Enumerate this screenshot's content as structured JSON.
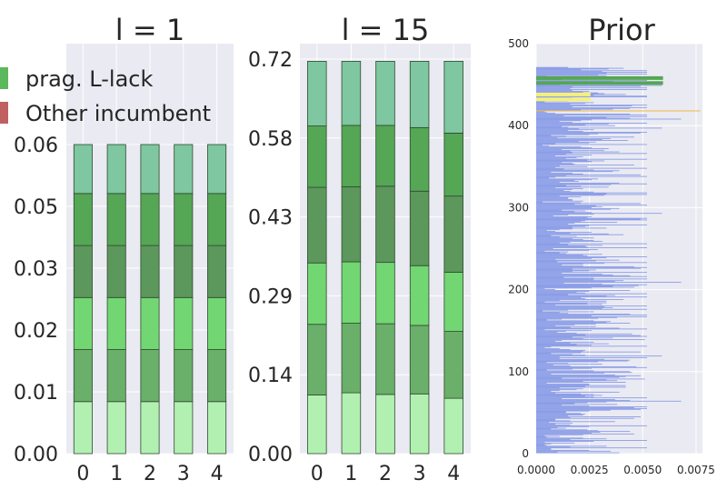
{
  "chart_data": [
    {
      "type": "bar",
      "stacked": true,
      "title": "l = 1",
      "categories": [
        "0",
        "1",
        "2",
        "3",
        "4"
      ],
      "yticks": [
        "0.00",
        "0.01",
        "0.02",
        "0.03",
        "0.05",
        "0.06"
      ],
      "ylim": [
        0,
        0.06
      ],
      "grid": true,
      "series": [
        {
          "color": "#b2f0b2",
          "values": [
            0.0101,
            0.0101,
            0.0101,
            0.0101,
            0.0101
          ]
        },
        {
          "color": "#6aaf6a",
          "values": [
            0.0101,
            0.0101,
            0.0101,
            0.0101,
            0.0101
          ]
        },
        {
          "color": "#72d672",
          "values": [
            0.0101,
            0.0101,
            0.0101,
            0.0101,
            0.0101
          ]
        },
        {
          "color": "#5c975c",
          "values": [
            0.0101,
            0.0101,
            0.0101,
            0.0101,
            0.0101
          ]
        },
        {
          "color": "#55a655",
          "values": [
            0.0101,
            0.0101,
            0.0101,
            0.0101,
            0.0101
          ]
        },
        {
          "color": "#7ec7a0",
          "values": [
            0.0095,
            0.0095,
            0.0095,
            0.0095,
            0.0095
          ]
        }
      ]
    },
    {
      "type": "bar",
      "stacked": true,
      "title": "l = 15",
      "categories": [
        "0",
        "1",
        "2",
        "3",
        "4"
      ],
      "yticks": [
        "0.00",
        "0.14",
        "0.29",
        "0.43",
        "0.58",
        "0.72"
      ],
      "ylim": [
        0,
        0.72
      ],
      "grid": true,
      "series": [
        {
          "color": "#b2f0b2",
          "values": [
            0.107,
            0.111,
            0.108,
            0.109,
            0.101
          ]
        },
        {
          "color": "#6aaf6a",
          "values": [
            0.129,
            0.127,
            0.129,
            0.125,
            0.122
          ]
        },
        {
          "color": "#72d672",
          "values": [
            0.112,
            0.112,
            0.112,
            0.109,
            0.108
          ]
        },
        {
          "color": "#5c975c",
          "values": [
            0.138,
            0.137,
            0.139,
            0.136,
            0.139
          ]
        },
        {
          "color": "#55a655",
          "values": [
            0.112,
            0.112,
            0.111,
            0.116,
            0.115
          ]
        },
        {
          "color": "#7ec7a0",
          "values": [
            0.118,
            0.117,
            0.117,
            0.121,
            0.131
          ]
        }
      ]
    },
    {
      "type": "bar",
      "orientation": "horizontal",
      "title": "Prior",
      "xlim": [
        0,
        0.0078
      ],
      "ylim": [
        0,
        500
      ],
      "xticks": [
        "0.0000",
        "0.0025",
        "0.0050",
        "0.0075"
      ],
      "yticks": [
        "0",
        "100",
        "200",
        "300",
        "400",
        "500"
      ],
      "grid": true,
      "highlight_bars": [
        {
          "y": 458,
          "value": 0.00595,
          "color": "#55a655"
        },
        {
          "y": 452,
          "value": 0.00595,
          "color": "#55a655"
        },
        {
          "y": 438,
          "value": 0.00255,
          "color": "#f5f07a"
        },
        {
          "y": 432,
          "value": 0.00255,
          "color": "#f5f07a"
        },
        {
          "y": 418,
          "value": 0.0077,
          "color": "#f0c060"
        }
      ],
      "bar_color": "#8296e6",
      "bar_values": [
        0.0039,
        0.001,
        0.0035,
        0.0025,
        0.0007,
        0.0007,
        0.0052,
        0.0016,
        0.0033,
        0.0005,
        0.0004,
        0.0007,
        0.0018,
        0.0004,
        0.0027,
        0.0052,
        0.0016,
        0.0033,
        0.0022,
        0.0005,
        0.0011,
        0.0004,
        0.0022,
        0.0046,
        0.0026,
        0.003,
        0.0044,
        0.0029,
        0.0024,
        0.0007,
        0.0014,
        0.001,
        0.0025,
        0.0052,
        0.0016,
        0.0009,
        0.0017,
        0.0006,
        0.0037,
        0.0016,
        0.0009,
        0.0009,
        0.0046,
        0.0016,
        0.0049,
        0.0015,
        0.0022,
        0.0023,
        0.0021,
        0.0014,
        0.0014,
        0.0025,
        0.0035,
        0.0049,
        0.0052,
        0.0046,
        0.0052,
        0.0025,
        0.0012,
        0.0038,
        0.0018,
        0.0024,
        0.0033,
        0.0068,
        0.0044,
        0.0037,
        0.0012,
        0.0052,
        0.0027,
        0.0023,
        0.0031,
        0.0027,
        0.0021,
        0.0009,
        0.0039,
        0.0007,
        0.0011,
        0.0019,
        0.0022,
        0.0011,
        0.0042,
        0.0023,
        0.0042,
        0.0025,
        0.0025,
        0.0005,
        0.0042,
        0.0022,
        0.0038,
        0.0033,
        0.0051,
        0.0012,
        0.0039,
        0.0042,
        0.0049,
        0.0037,
        0.0007,
        0.0032,
        0.0045,
        0.0044,
        0.0027,
        0.0005,
        0.0017,
        0.0026,
        0.0052,
        0.0047,
        0.0016,
        0.0008,
        0.0031,
        0.0015,
        0.0005,
        0.0029,
        0.0043,
        0.0044,
        0.0032,
        0.0011,
        0.0052,
        0.0011,
        0.0059,
        0.0023,
        0.0017,
        0.0007,
        0.0021,
        0.0049,
        0.0022,
        0.0023,
        0.0016,
        0.0011,
        0.0004,
        0.0007,
        0.0052,
        0.0026,
        0.0019,
        0.0034,
        0.0016,
        0.0027,
        0.0009,
        0.0012,
        0.0051,
        0.0022,
        0.0036,
        0.0017,
        0.0052,
        0.0049,
        0.0023,
        0.0045,
        0.0019,
        0.001,
        0.0014,
        0.0026,
        0.0004,
        0.0052,
        0.0039,
        0.0016,
        0.0028,
        0.0009,
        0.0018,
        0.0028,
        0.0044,
        0.0033,
        0.0035,
        0.0027,
        0.0005,
        0.0012,
        0.0029,
        0.0038,
        0.0052,
        0.0026,
        0.0052,
        0.0044,
        0.0015,
        0.0011,
        0.0027,
        0.0003,
        0.0015,
        0.0052,
        0.0031,
        0.0036,
        0.0032,
        0.0052,
        0.0009,
        0.0031,
        0.0024,
        0.0033,
        0.0004,
        0.0033,
        0.0011,
        0.0041,
        0.0023,
        0.0021,
        0.0052,
        0.0033,
        0.0037,
        0.0015,
        0.0052,
        0.0023,
        0.0019,
        0.0025,
        0.0044,
        0.0009,
        0.0004,
        0.0026,
        0.0046,
        0.0036,
        0.0048,
        0.0052,
        0.0031,
        0.0013,
        0.0068,
        0.0037,
        0.0041,
        0.0027,
        0.0052,
        0.0027,
        0.0013,
        0.0052,
        0.0044,
        0.0036,
        0.0031,
        0.0012,
        0.0052,
        0.0017,
        0.0025,
        0.0028,
        0.0017,
        0.0049,
        0.0052,
        0.0046,
        0.0022,
        0.0012,
        0.0022,
        0.0032,
        0.0052,
        0.001,
        0.0028,
        0.0039,
        0.0009,
        0.0026,
        0.0033,
        0.0052,
        0.0024,
        0.0022,
        0.0031,
        0.0014,
        0.0011,
        0.0015,
        0.0004,
        0.0025,
        0.0029,
        0.0008,
        0.0052,
        0.0024,
        0.0023,
        0.0031,
        0.0015,
        0.0052,
        0.0011,
        0.0016,
        0.0031,
        0.0027,
        0.0022,
        0.0017,
        0.0027,
        0.0011,
        0.0019,
        0.0007,
        0.0041,
        0.0034,
        0.0016,
        0.0026,
        0.0009,
        0.0005,
        0.0011,
        0.0017,
        0.0033,
        0.0017,
        0.0023,
        0.0025,
        0.0052,
        0.0015,
        0.0018,
        0.0038,
        0.0021,
        0.0023,
        0.0052,
        0.0049,
        0.0052,
        0.0024,
        0.0026,
        0.0008,
        0.0015,
        0.0027,
        0.0059,
        0.0026,
        0.0018,
        0.0023,
        0.0012,
        0.0035,
        0.0039,
        0.0026,
        0.0031,
        0.0028,
        0.0052,
        0.0018,
        0.0049,
        0.0021,
        0.0003,
        0.0022,
        0.0017,
        0.0017,
        0.0015,
        0.0015,
        0.0021,
        0.0011,
        0.0032,
        0.0052,
        0.0033,
        0.0052,
        0.0027,
        0.0016,
        0.0013,
        0.0017,
        0.0022,
        0.0009,
        0.0034,
        0.0021,
        0.0014,
        0.0035,
        0.0052,
        0.0039,
        0.0011,
        0.002,
        0.0018,
        0.0026,
        0.0029,
        0.0006,
        0.0009,
        0.0052,
        0.0014,
        0.0049,
        0.0022,
        0.0017,
        0.0007,
        0.0036,
        0.0039,
        0.0027,
        0.0013,
        0.0052,
        0.0009,
        0.0024,
        0.0011,
        0.0046,
        0.0018,
        0.0017,
        0.0012,
        0.0026,
        0.0032,
        0.0024,
        0.0052,
        0.0014,
        0.0019,
        0.0022,
        0.0009,
        0.0026,
        0.0014,
        0.0052,
        0.0017,
        0.0039,
        0.0016,
        0.0032,
        0.0012,
        0.0034,
        0.0026,
        0.0021,
        0.0006,
        0.0003,
        0.0052,
        0.0009,
        0.0025,
        0.0028,
        0.002,
        0.0043,
        0.0031,
        0.0035,
        0.001,
        0.0046,
        0.0014,
        0.0007,
        0.0025,
        0.0029,
        0.0049,
        0.0052,
        0.0022,
        0.0015,
        0.0027,
        0.002,
        0.0059,
        0.0015,
        0.0012,
        0.0037,
        0.0023,
        0.0034,
        0.0052,
        0.0017,
        0.0011,
        0.0021,
        0.0026,
        0.0068,
        0.0044,
        0.0033,
        0.0052,
        0.0013,
        0.0052,
        0.0044,
        0.0009,
        0.0005,
        0.0004,
        0.0014,
        0.0021,
        0.0036,
        0.0044,
        0.0052,
        0.0017,
        0.0045,
        0.0052,
        0.0016,
        0.0023,
        0.0027,
        0.0004,
        0.0015,
        0.0011,
        0.0021,
        0.0024,
        0.0017,
        0.0052,
        0.0052,
        0.0027,
        0.0042,
        0.0032,
        0.0029,
        0.0022,
        0.0025,
        0.0017,
        0.0052,
        0.0016,
        0.0052,
        0.0017,
        0.0049,
        0.0059,
        0.0011,
        0.0024,
        0.003,
        0.0024,
        0.0036,
        0.0052,
        0.0012,
        0.0033,
        0.0016,
        0.0017,
        0.0005,
        0.0033,
        0.0029,
        0.0052,
        0.0033,
        0.0052,
        0.0031,
        0.0052,
        0.0021,
        0.0034,
        0.0041,
        0.0015
      ]
    }
  ],
  "legend": {
    "items": [
      {
        "label": "prag. L-lack",
        "color": "#5cb85c"
      },
      {
        "label": "Other incumbent",
        "color": "#c06060"
      }
    ]
  }
}
